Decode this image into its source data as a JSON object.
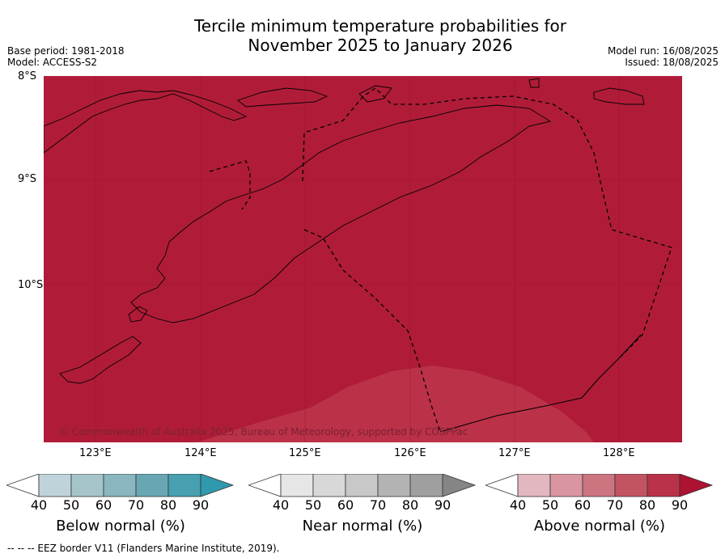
{
  "title_line1": "Tercile minimum temperature probabilities for",
  "title_line2": "November 2025 to January 2026",
  "meta": {
    "base_period": "Base period: 1981-2018",
    "model": "Model: ACCESS-S2",
    "model_run": "Model run: 16/08/2025",
    "issued": "Issued: 18/08/2025"
  },
  "axes": {
    "lat_labels": [
      "8°S",
      "9°S",
      "10°S"
    ],
    "lon_labels": [
      "123°E",
      "124°E",
      "125°E",
      "126°E",
      "127°E",
      "128°E"
    ]
  },
  "copyright": "© Commonwealth of Australia 2025, Bureau of Meteorology, supported by COSPPac",
  "colors": {
    "above_90": "#b01c38",
    "above_80": "#bb3148",
    "land_outline": "#000000"
  },
  "legends": [
    {
      "label": "Below normal (%)",
      "ticks": [
        "40",
        "50",
        "60",
        "70",
        "80",
        "90"
      ],
      "colors": [
        "#ffffff",
        "#bfd4da",
        "#a6c5cb",
        "#89b6bf",
        "#68a6b2",
        "#46a0b0",
        "#2f99ad"
      ]
    },
    {
      "label": "Near normal (%)",
      "ticks": [
        "40",
        "50",
        "60",
        "70",
        "80",
        "90"
      ],
      "colors": [
        "#ffffff",
        "#e6e6e6",
        "#d8d8d8",
        "#c8c8c8",
        "#b3b3b3",
        "#9f9f9f",
        "#858585"
      ]
    },
    {
      "label": "Above normal (%)",
      "ticks": [
        "40",
        "50",
        "60",
        "70",
        "80",
        "90"
      ],
      "colors": [
        "#ffffff",
        "#e3b7bf",
        "#d996a1",
        "#cc7480",
        "#c25462",
        "#b9324a",
        "#ad1232"
      ]
    }
  ],
  "footer": "--  --  -- EEZ border V11 (Flanders Marine Institute, 2019)."
}
